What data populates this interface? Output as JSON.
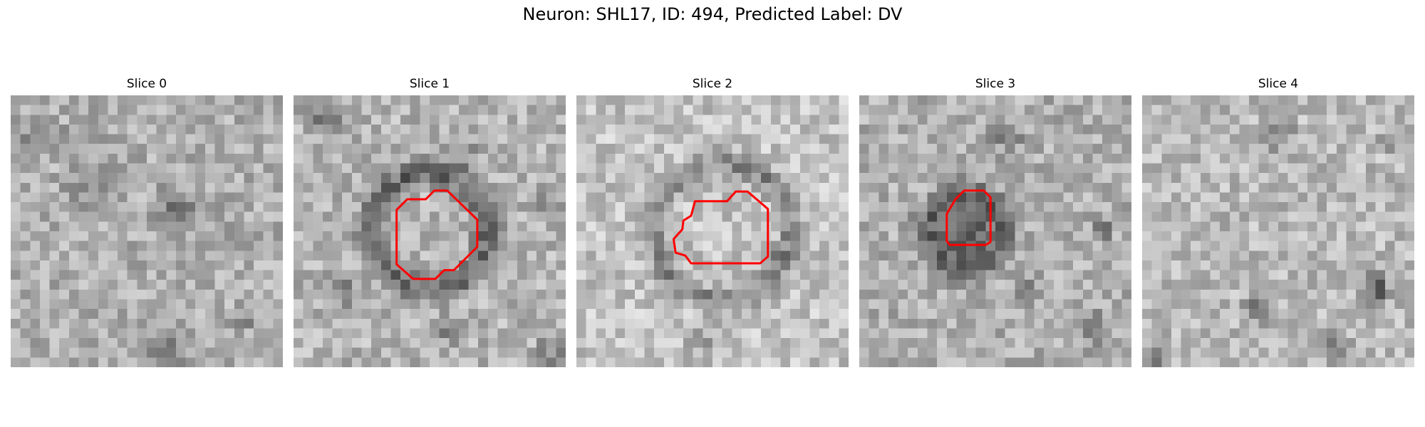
{
  "figure": {
    "title": "Neuron: SHL17, ID: 494, Predicted Label: DV"
  },
  "panels": [
    {
      "title": "Slice 0",
      "has_contour": false
    },
    {
      "title": "Slice 1",
      "has_contour": true
    },
    {
      "title": "Slice 2",
      "has_contour": true
    },
    {
      "title": "Slice 3",
      "has_contour": true
    },
    {
      "title": "Slice 4",
      "has_contour": false
    }
  ],
  "colors": {
    "contour": "#ff0000",
    "colormap": "grayscale"
  }
}
